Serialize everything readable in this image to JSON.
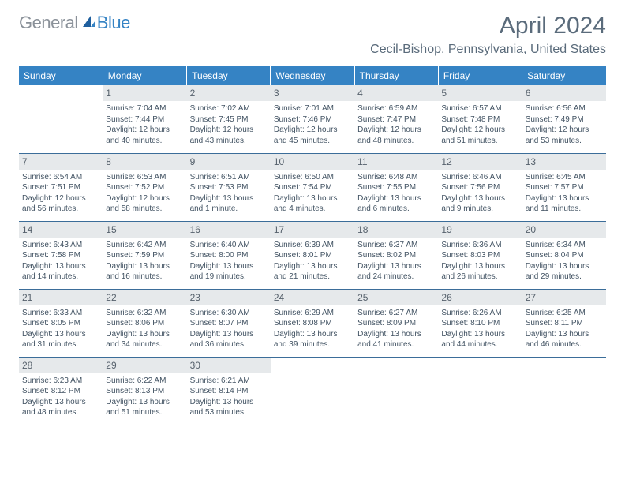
{
  "logo": {
    "text1": "General",
    "text2": "Blue"
  },
  "title": {
    "month": "April 2024",
    "location": "Cecil-Bishop, Pennsylvania, United States"
  },
  "header_bg": "#3583c4",
  "header_fg": "#ffffff",
  "daynum_bg": "#e6e9eb",
  "border_color": "#3b6d99",
  "weekdays": [
    "Sunday",
    "Monday",
    "Tuesday",
    "Wednesday",
    "Thursday",
    "Friday",
    "Saturday"
  ],
  "weeks": [
    [
      {
        "n": "",
        "sr": "",
        "ss": "",
        "dl": ""
      },
      {
        "n": "1",
        "sr": "Sunrise: 7:04 AM",
        "ss": "Sunset: 7:44 PM",
        "dl": "Daylight: 12 hours and 40 minutes."
      },
      {
        "n": "2",
        "sr": "Sunrise: 7:02 AM",
        "ss": "Sunset: 7:45 PM",
        "dl": "Daylight: 12 hours and 43 minutes."
      },
      {
        "n": "3",
        "sr": "Sunrise: 7:01 AM",
        "ss": "Sunset: 7:46 PM",
        "dl": "Daylight: 12 hours and 45 minutes."
      },
      {
        "n": "4",
        "sr": "Sunrise: 6:59 AM",
        "ss": "Sunset: 7:47 PM",
        "dl": "Daylight: 12 hours and 48 minutes."
      },
      {
        "n": "5",
        "sr": "Sunrise: 6:57 AM",
        "ss": "Sunset: 7:48 PM",
        "dl": "Daylight: 12 hours and 51 minutes."
      },
      {
        "n": "6",
        "sr": "Sunrise: 6:56 AM",
        "ss": "Sunset: 7:49 PM",
        "dl": "Daylight: 12 hours and 53 minutes."
      }
    ],
    [
      {
        "n": "7",
        "sr": "Sunrise: 6:54 AM",
        "ss": "Sunset: 7:51 PM",
        "dl": "Daylight: 12 hours and 56 minutes."
      },
      {
        "n": "8",
        "sr": "Sunrise: 6:53 AM",
        "ss": "Sunset: 7:52 PM",
        "dl": "Daylight: 12 hours and 58 minutes."
      },
      {
        "n": "9",
        "sr": "Sunrise: 6:51 AM",
        "ss": "Sunset: 7:53 PM",
        "dl": "Daylight: 13 hours and 1 minute."
      },
      {
        "n": "10",
        "sr": "Sunrise: 6:50 AM",
        "ss": "Sunset: 7:54 PM",
        "dl": "Daylight: 13 hours and 4 minutes."
      },
      {
        "n": "11",
        "sr": "Sunrise: 6:48 AM",
        "ss": "Sunset: 7:55 PM",
        "dl": "Daylight: 13 hours and 6 minutes."
      },
      {
        "n": "12",
        "sr": "Sunrise: 6:46 AM",
        "ss": "Sunset: 7:56 PM",
        "dl": "Daylight: 13 hours and 9 minutes."
      },
      {
        "n": "13",
        "sr": "Sunrise: 6:45 AM",
        "ss": "Sunset: 7:57 PM",
        "dl": "Daylight: 13 hours and 11 minutes."
      }
    ],
    [
      {
        "n": "14",
        "sr": "Sunrise: 6:43 AM",
        "ss": "Sunset: 7:58 PM",
        "dl": "Daylight: 13 hours and 14 minutes."
      },
      {
        "n": "15",
        "sr": "Sunrise: 6:42 AM",
        "ss": "Sunset: 7:59 PM",
        "dl": "Daylight: 13 hours and 16 minutes."
      },
      {
        "n": "16",
        "sr": "Sunrise: 6:40 AM",
        "ss": "Sunset: 8:00 PM",
        "dl": "Daylight: 13 hours and 19 minutes."
      },
      {
        "n": "17",
        "sr": "Sunrise: 6:39 AM",
        "ss": "Sunset: 8:01 PM",
        "dl": "Daylight: 13 hours and 21 minutes."
      },
      {
        "n": "18",
        "sr": "Sunrise: 6:37 AM",
        "ss": "Sunset: 8:02 PM",
        "dl": "Daylight: 13 hours and 24 minutes."
      },
      {
        "n": "19",
        "sr": "Sunrise: 6:36 AM",
        "ss": "Sunset: 8:03 PM",
        "dl": "Daylight: 13 hours and 26 minutes."
      },
      {
        "n": "20",
        "sr": "Sunrise: 6:34 AM",
        "ss": "Sunset: 8:04 PM",
        "dl": "Daylight: 13 hours and 29 minutes."
      }
    ],
    [
      {
        "n": "21",
        "sr": "Sunrise: 6:33 AM",
        "ss": "Sunset: 8:05 PM",
        "dl": "Daylight: 13 hours and 31 minutes."
      },
      {
        "n": "22",
        "sr": "Sunrise: 6:32 AM",
        "ss": "Sunset: 8:06 PM",
        "dl": "Daylight: 13 hours and 34 minutes."
      },
      {
        "n": "23",
        "sr": "Sunrise: 6:30 AM",
        "ss": "Sunset: 8:07 PM",
        "dl": "Daylight: 13 hours and 36 minutes."
      },
      {
        "n": "24",
        "sr": "Sunrise: 6:29 AM",
        "ss": "Sunset: 8:08 PM",
        "dl": "Daylight: 13 hours and 39 minutes."
      },
      {
        "n": "25",
        "sr": "Sunrise: 6:27 AM",
        "ss": "Sunset: 8:09 PM",
        "dl": "Daylight: 13 hours and 41 minutes."
      },
      {
        "n": "26",
        "sr": "Sunrise: 6:26 AM",
        "ss": "Sunset: 8:10 PM",
        "dl": "Daylight: 13 hours and 44 minutes."
      },
      {
        "n": "27",
        "sr": "Sunrise: 6:25 AM",
        "ss": "Sunset: 8:11 PM",
        "dl": "Daylight: 13 hours and 46 minutes."
      }
    ],
    [
      {
        "n": "28",
        "sr": "Sunrise: 6:23 AM",
        "ss": "Sunset: 8:12 PM",
        "dl": "Daylight: 13 hours and 48 minutes."
      },
      {
        "n": "29",
        "sr": "Sunrise: 6:22 AM",
        "ss": "Sunset: 8:13 PM",
        "dl": "Daylight: 13 hours and 51 minutes."
      },
      {
        "n": "30",
        "sr": "Sunrise: 6:21 AM",
        "ss": "Sunset: 8:14 PM",
        "dl": "Daylight: 13 hours and 53 minutes."
      },
      {
        "n": "",
        "sr": "",
        "ss": "",
        "dl": ""
      },
      {
        "n": "",
        "sr": "",
        "ss": "",
        "dl": ""
      },
      {
        "n": "",
        "sr": "",
        "ss": "",
        "dl": ""
      },
      {
        "n": "",
        "sr": "",
        "ss": "",
        "dl": ""
      }
    ]
  ]
}
